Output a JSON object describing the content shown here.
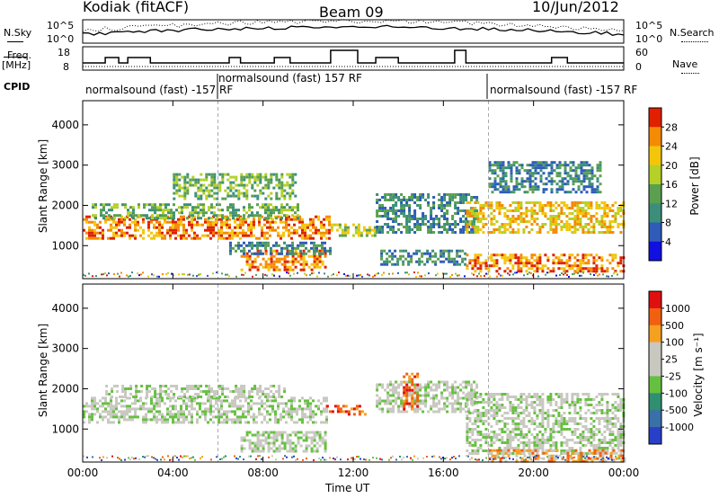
{
  "header": {
    "station": "Kodiak (fitACF)",
    "beam": "Beam 09",
    "date": "10/Jun/2012"
  },
  "left_labels": {
    "nsky": "N.Sky",
    "freq": "Freq.",
    "freq_unit": "[MHz]",
    "cpid": "CPID"
  },
  "right_labels": {
    "nsearch": "N.Search",
    "nave": "Nave"
  },
  "scales": {
    "noise_left_top": "10^5",
    "noise_left_bottom": "10^0",
    "noise_right_top": "10^5",
    "noise_right_bottom": "10^0",
    "freq_left_top": "18",
    "freq_left_bottom": "8",
    "nave_right_top": "60",
    "nave_right_bottom": "0"
  },
  "cpid_segments": [
    {
      "text": "normalsound (fast) -157 RF"
    },
    {
      "text": "normalsound (fast) 157 RF"
    },
    {
      "text": "normalsound (fast) -157 RF"
    }
  ],
  "chart_data": [
    {
      "type": "heatmap",
      "name": "power",
      "ylabel": "Slant Range [km]",
      "xlabel": "Time UT",
      "x_ticks": [
        "00:00",
        "04:00",
        "08:00",
        "12:00",
        "16:00",
        "20:00",
        "00:00"
      ],
      "xlim_hours": [
        0,
        24
      ],
      "y_ticks": [
        "1000",
        "2000",
        "3000",
        "4000"
      ],
      "ylim_km": [
        180,
        4600
      ],
      "colorbar_label": "Power [dB]",
      "colorbar_ticks": [
        "4",
        "8",
        "12",
        "16",
        "20",
        "24",
        "28"
      ],
      "colorbar_colors": [
        "#1010e0",
        "#2e5cb8",
        "#3b8f7a",
        "#5aa050",
        "#b5d027",
        "#f3c60a",
        "#f58a05",
        "#e02000"
      ],
      "bands": [
        {
          "t0": 0.0,
          "t1": 11.0,
          "r0": 1150,
          "r1": 1750,
          "level": 6
        },
        {
          "t0": 0.4,
          "t1": 9.5,
          "r0": 1650,
          "r1": 2050,
          "level": 3
        },
        {
          "t0": 4.0,
          "t1": 9.5,
          "r0": 2150,
          "r1": 2800,
          "level": 3
        },
        {
          "t0": 7.0,
          "t1": 10.8,
          "r0": 400,
          "r1": 900,
          "level": 6
        },
        {
          "t0": 6.5,
          "t1": 11.0,
          "r0": 800,
          "r1": 1100,
          "level": 2
        },
        {
          "t0": 11.0,
          "t1": 13.0,
          "r0": 1250,
          "r1": 1550,
          "level": 4
        },
        {
          "t0": 13.0,
          "t1": 17.5,
          "r0": 1300,
          "r1": 2300,
          "level": 2
        },
        {
          "t0": 13.2,
          "t1": 17.0,
          "r0": 500,
          "r1": 900,
          "level": 2
        },
        {
          "t0": 17.0,
          "t1": 24.0,
          "r0": 1300,
          "r1": 2100,
          "level": 5
        },
        {
          "t0": 17.0,
          "t1": 24.0,
          "r0": 350,
          "r1": 800,
          "level": 6
        },
        {
          "t0": 18.0,
          "t1": 23.0,
          "r0": 2300,
          "r1": 3100,
          "level": 2
        }
      ]
    },
    {
      "type": "heatmap",
      "name": "velocity",
      "ylabel": "Slant Range [km]",
      "xlabel": "Time UT",
      "x_ticks": [
        "00:00",
        "04:00",
        "08:00",
        "12:00",
        "16:00",
        "20:00",
        "00:00"
      ],
      "xlim_hours": [
        0,
        24
      ],
      "y_ticks": [
        "1000",
        "2000",
        "3000",
        "4000"
      ],
      "ylim_km": [
        180,
        4600
      ],
      "colorbar_label": "Velocity [m s⁻¹]",
      "colorbar_ticks": [
        "1000",
        "500",
        "100",
        "25",
        "-25",
        "-100",
        "-500",
        "-1000"
      ],
      "colorbar_colors": [
        "#2840c8",
        "#3a70a8",
        "#2f8f70",
        "#66c040",
        "#c8c8c0",
        "#c8c8c0",
        "#f5a020",
        "#f06010",
        "#e01010"
      ],
      "bands": [
        {
          "t0": 0.0,
          "t1": 10.8,
          "r0": 1150,
          "r1": 1800,
          "level": 4
        },
        {
          "t0": 1.0,
          "t1": 9.0,
          "r0": 1800,
          "r1": 2100,
          "level": 4
        },
        {
          "t0": 7.0,
          "t1": 10.8,
          "r0": 450,
          "r1": 950,
          "level": 4
        },
        {
          "t0": 10.8,
          "t1": 12.5,
          "r0": 1350,
          "r1": 1600,
          "level": 7
        },
        {
          "t0": 13.0,
          "t1": 17.5,
          "r0": 1400,
          "r1": 2200,
          "level": 4
        },
        {
          "t0": 14.2,
          "t1": 14.9,
          "r0": 1500,
          "r1": 2400,
          "level": 7
        },
        {
          "t0": 17.0,
          "t1": 24.0,
          "r0": 400,
          "r1": 1900,
          "level": 4
        },
        {
          "t0": 18.0,
          "t1": 24.0,
          "r0": 200,
          "r1": 500,
          "level": 6
        }
      ]
    }
  ]
}
